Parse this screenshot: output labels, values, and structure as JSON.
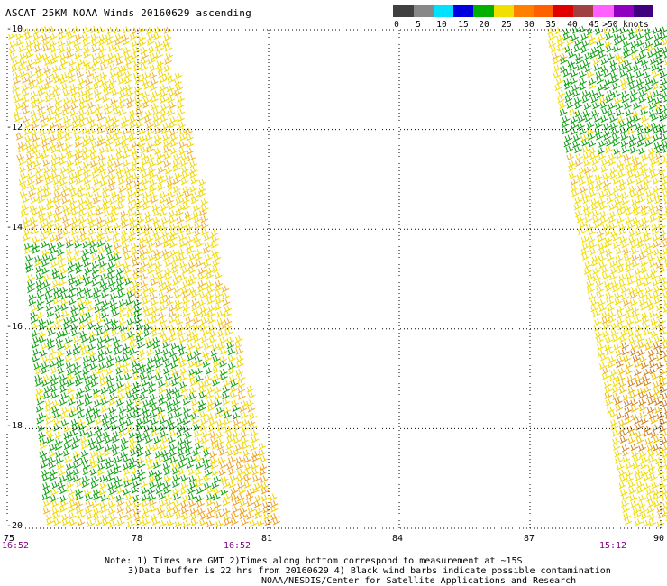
{
  "title": "ASCAT 25KM NOAA Winds 20160629 ascending",
  "legend": {
    "colors": [
      "#404040",
      "#888888",
      "#00e0ff",
      "#0000e0",
      "#00b000",
      "#f0e000",
      "#ff8000",
      "#ff6000",
      "#e00000",
      "#a04040",
      "#ff60ff",
      "#9000c0",
      "#400080"
    ],
    "labels": [
      "0",
      "5",
      "10",
      "15",
      "20",
      "25",
      "30",
      "35",
      "40",
      "45",
      ">50 knots"
    ]
  },
  "map": {
    "lon_min": 75,
    "lon_max": 90,
    "lat_min": -20,
    "lat_max": -10,
    "lon_ticks": [
      "75",
      "78",
      "81",
      "84",
      "87",
      "90"
    ],
    "lat_ticks": [
      "-10",
      "-12",
      "-14",
      "-16",
      "-18",
      "-20"
    ],
    "swath_times": [
      "16:52",
      "16:52",
      "15:12"
    ]
  },
  "notes": {
    "line1": "Note: 1) Times are GMT 2)Times along bottom correspond to measurement at ~15S",
    "line2": "3)Data buffer is 22 hrs from 20160629 4) Black wind barbs indicate possible contamination",
    "line3": "NOAA/NESDIS/Center for Satellite Applications and Research"
  }
}
